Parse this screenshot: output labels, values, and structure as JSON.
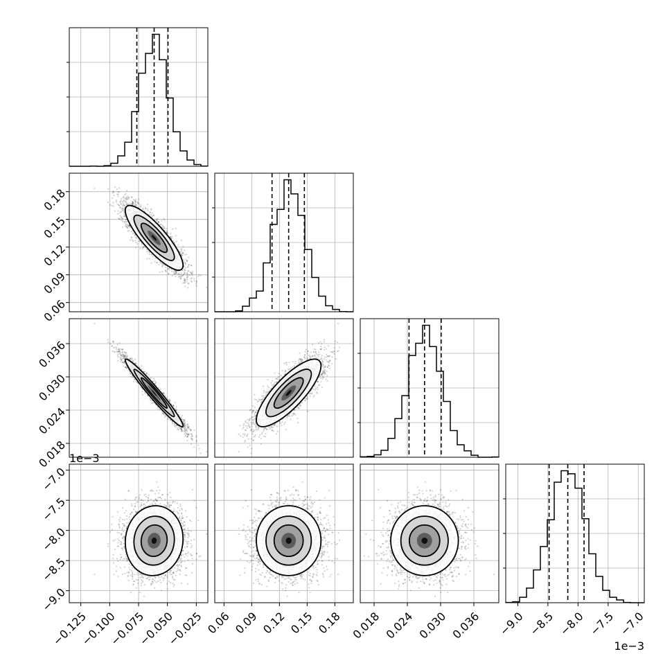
{
  "chart_data": {
    "type": "corner",
    "n_params": 4,
    "grid": true,
    "colors": {
      "line": "#000000",
      "grid": "#b0b0b0",
      "points": "#000000"
    },
    "params": [
      {
        "range": [
          -0.135,
          -0.015
        ],
        "ticks": [
          -0.125,
          -0.1,
          -0.075,
          -0.05,
          -0.025
        ],
        "tick_labels": [
          "−0.125",
          "−0.100",
          "−0.075",
          "−0.050",
          "−0.025"
        ],
        "mean": -0.0615,
        "sd": 0.0125,
        "quantiles": [
          -0.0765,
          -0.0615,
          -0.0495
        ],
        "offset_label": ""
      },
      {
        "range": [
          0.05,
          0.2
        ],
        "ticks": [
          0.06,
          0.09,
          0.12,
          0.15,
          0.18
        ],
        "tick_labels": [
          "0.06",
          "0.09",
          "0.12",
          "0.15",
          "0.18"
        ],
        "mean": 0.13,
        "sd": 0.0175,
        "quantiles": [
          0.112,
          0.13,
          0.147
        ],
        "offset_label": ""
      },
      {
        "range": [
          0.0155,
          0.0405
        ],
        "ticks": [
          0.018,
          0.024,
          0.03,
          0.036
        ],
        "tick_labels": [
          "0.018",
          "0.024",
          "0.030",
          "0.036"
        ],
        "mean": 0.0271,
        "sd": 0.00305,
        "quantiles": [
          0.0243,
          0.0271,
          0.0301
        ],
        "offset_label": ""
      },
      {
        "range": [
          -9.2,
          -6.9
        ],
        "ticks": [
          -9.0,
          -8.5,
          -8.0,
          -7.5,
          -7.0
        ],
        "tick_labels": [
          "−9.0",
          "−8.5",
          "−8.0",
          "−7.5",
          "−7.0"
        ],
        "mean": -8.17,
        "sd": 0.29,
        "quantiles": [
          -8.48,
          -8.17,
          -7.9
        ],
        "offset_label": "1e−3"
      }
    ],
    "correlations": [
      [
        1.0,
        -0.85,
        -0.97,
        0.05
      ],
      [
        -0.85,
        1.0,
        0.8,
        0.0
      ],
      [
        -0.97,
        0.8,
        1.0,
        0.0
      ],
      [
        0.05,
        0.0,
        0.0,
        1.0
      ]
    ],
    "hist_bins": 20,
    "n_samples": 3500
  }
}
